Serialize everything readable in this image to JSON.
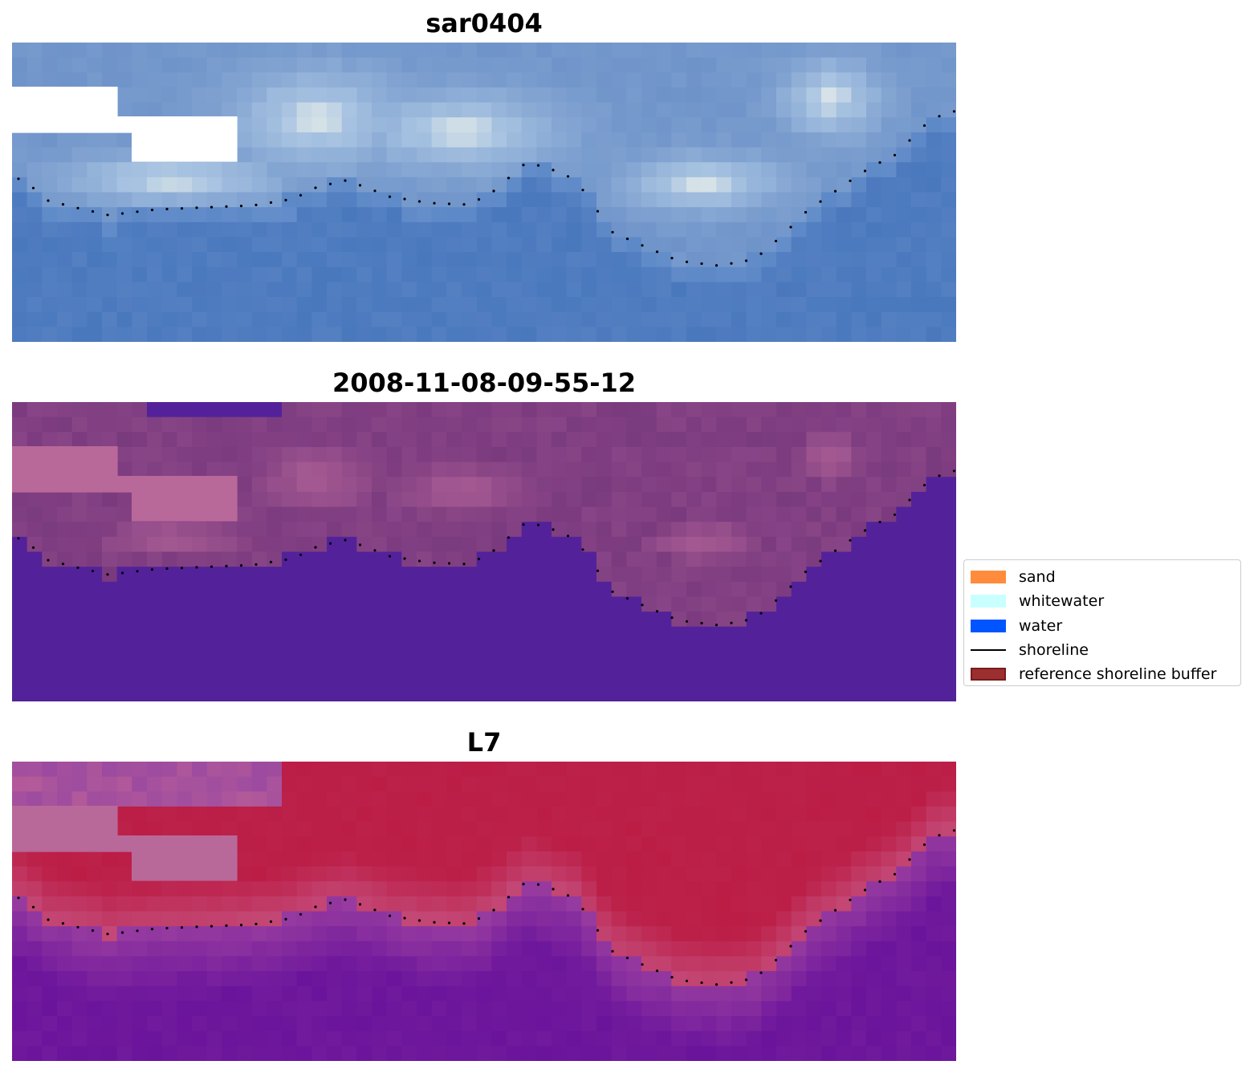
{
  "panels": [
    {
      "title": "sar0404",
      "palette": "rgb"
    },
    {
      "title": "2008-11-08-09-55-12",
      "palette": "classification"
    },
    {
      "title": "L7",
      "palette": "index"
    }
  ],
  "legend": {
    "items": [
      {
        "label": "sand",
        "color": "#ff8c3c",
        "kind": "patch"
      },
      {
        "label": "whitewater",
        "color": "#c8ffff",
        "kind": "patch"
      },
      {
        "label": "water",
        "color": "#0055ff",
        "kind": "patch"
      },
      {
        "label": "shoreline",
        "color": "#000000",
        "kind": "line"
      },
      {
        "label": "reference shoreline buffer",
        "color": "#9b2f2f",
        "edge": "#7a1a1a",
        "kind": "patch"
      }
    ]
  },
  "colors": {
    "water_rgb": "#4a78bd",
    "land_rgb": "#a9c4e2",
    "cloud": "#ffffff",
    "class_water": "#53229a",
    "class_land": "#8e4a8a",
    "class_pink": "#b9689a",
    "index_sand": "#bb1d45",
    "index_water": "#6a149c",
    "index_pink": "#b9689a"
  }
}
